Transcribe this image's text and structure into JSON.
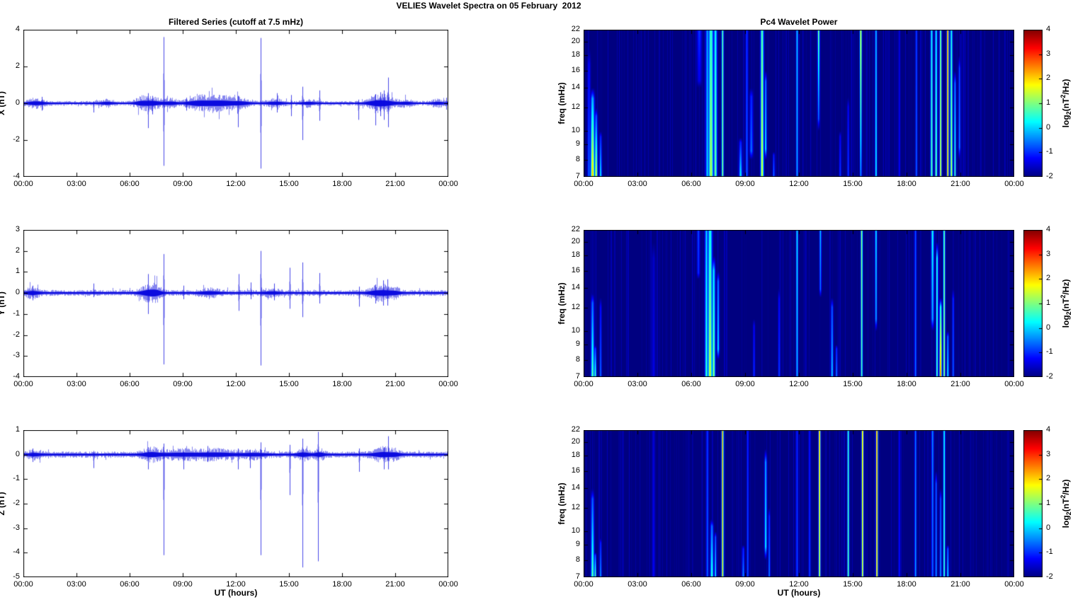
{
  "figure_title": "VELIES Wavelet Spectra on 05 February  2012",
  "left_column_title": "Filtered Series (cutoff at 7.5 mHz)",
  "right_column_title": "Pc4 Wavelet Power",
  "shared": {
    "xlabel": "UT (hours)",
    "time_ticks": [
      "00:00",
      "03:00",
      "06:00",
      "09:00",
      "12:00",
      "15:00",
      "18:00",
      "21:00",
      "00:00"
    ],
    "x_range_hours": [
      0,
      24
    ]
  },
  "colorbar": {
    "min": -2,
    "max": 4,
    "ticks": [
      4,
      3,
      2,
      1,
      0,
      -1,
      -2
    ],
    "label_pre": "log",
    "label_sub": "2",
    "label_mid": "(nT",
    "label_sup": "2",
    "label_post": "/Hz)"
  },
  "colors": {
    "line_series": "#0b0bdf",
    "spectrogram_background": "#000080",
    "axis": "#000000",
    "figure_background": "#ffffff"
  },
  "chart_data": [
    {
      "id": "ts-x",
      "type": "line",
      "seed": 11,
      "title": "Filtered Series (cutoff at 7.5 mHz)",
      "ylabel": "X (nT)",
      "ylim": [
        -4,
        4
      ],
      "yticks": [
        4,
        2,
        0,
        -2,
        -4
      ],
      "noise_base": 0.09,
      "noise_bursts": [
        [
          0.7,
          0.5,
          0.16
        ],
        [
          4.7,
          0.4,
          0.1
        ],
        [
          6.6,
          0.35,
          0.13
        ],
        [
          7.2,
          0.6,
          0.22
        ],
        [
          8.3,
          0.4,
          0.13
        ],
        [
          9.7,
          0.6,
          0.16
        ],
        [
          10.5,
          0.8,
          0.2
        ],
        [
          11.4,
          0.7,
          0.18
        ],
        [
          12.3,
          0.5,
          0.13
        ],
        [
          14.2,
          0.5,
          0.12
        ],
        [
          16.1,
          0.4,
          0.1
        ],
        [
          19.8,
          0.5,
          0.16
        ],
        [
          20.4,
          0.6,
          0.24
        ],
        [
          21.6,
          0.4,
          0.1
        ],
        [
          23.4,
          0.4,
          0.1
        ]
      ],
      "spikes": [
        [
          1.05,
          0.35,
          -0.4
        ],
        [
          3.95,
          0.1,
          -0.5
        ],
        [
          7.05,
          0.55,
          -1.35
        ],
        [
          7.3,
          0.4,
          -0.6
        ],
        [
          7.9,
          3.6,
          -3.4
        ],
        [
          9.2,
          0.3,
          -0.4
        ],
        [
          12.1,
          0.4,
          -1.3
        ],
        [
          13.4,
          3.55,
          -3.55
        ],
        [
          14.3,
          0.55,
          -0.5
        ],
        [
          15.1,
          0.45,
          -0.7
        ],
        [
          15.75,
          0.9,
          -2.0
        ],
        [
          16.7,
          0.7,
          -0.95
        ],
        [
          18.9,
          0.2,
          -0.9
        ],
        [
          19.9,
          0.5,
          -1.2
        ],
        [
          20.15,
          0.6,
          -0.7
        ],
        [
          20.35,
          0.7,
          -0.9
        ],
        [
          20.6,
          1.4,
          -1.3
        ],
        [
          23.9,
          0.3,
          -0.35
        ]
      ]
    },
    {
      "id": "wav-x",
      "type": "heatmap",
      "seed": 21,
      "title": "Pc4 Wavelet Power",
      "ylabel": "freq (mHz)",
      "flim": [
        7,
        22
      ],
      "yticks": [
        22,
        20,
        18,
        16,
        14,
        12,
        10,
        9,
        8,
        7
      ],
      "clim": [
        -2,
        4
      ],
      "features": [
        [
          0.3,
          8,
          7,
          19,
          -0.6,
          -1.3
        ],
        [
          0.5,
          10,
          7,
          14,
          2.2,
          -0.5
        ],
        [
          0.7,
          7,
          7,
          12,
          1.8,
          -1.0
        ],
        [
          0.95,
          6,
          7,
          10,
          0.3,
          -1.2
        ],
        [
          6.45,
          12,
          14,
          22,
          -1.4,
          -0.9
        ],
        [
          6.9,
          9,
          7,
          22,
          0.0,
          -0.3
        ],
        [
          7.1,
          12,
          7,
          22,
          1.4,
          0.6
        ],
        [
          7.35,
          8,
          7,
          22,
          1.0,
          0.3
        ],
        [
          7.75,
          4,
          7,
          22,
          1.2,
          0.9
        ],
        [
          8.75,
          8,
          7,
          9.5,
          0.3,
          -1.2
        ],
        [
          9.1,
          6,
          7,
          22,
          -0.6,
          -0.9
        ],
        [
          9.35,
          9,
          8,
          14,
          -0.5,
          -1.1
        ],
        [
          9.95,
          8,
          7,
          22,
          1.7,
          0.8
        ],
        [
          10.15,
          5,
          8,
          16,
          0.5,
          -0.5
        ],
        [
          10.6,
          4,
          7,
          8.5,
          -0.4,
          -1.2
        ],
        [
          11.9,
          4,
          7,
          22,
          -0.1,
          0.1
        ],
        [
          13.1,
          3.5,
          10,
          22,
          -0.8,
          1.2
        ],
        [
          14.3,
          4,
          7,
          10,
          -0.8,
          -1.3
        ],
        [
          14.75,
          4,
          7,
          13,
          -0.8,
          -1.3
        ],
        [
          15.45,
          3.5,
          7,
          22,
          -0.3,
          2.0
        ],
        [
          16.3,
          4,
          7,
          22,
          0.4,
          0.0
        ],
        [
          17.6,
          4,
          7,
          22,
          -1.2,
          -1.4
        ],
        [
          18.55,
          4,
          7,
          22,
          -0.6,
          -0.8
        ],
        [
          19.4,
          6,
          7,
          22,
          0.9,
          0.3
        ],
        [
          19.65,
          6,
          7,
          22,
          1.0,
          0.2
        ],
        [
          19.9,
          5,
          7,
          22,
          1.8,
          1.2
        ],
        [
          20.3,
          4,
          7,
          22,
          2.6,
          3.0
        ],
        [
          20.5,
          6,
          7,
          22,
          1.6,
          0.4
        ],
        [
          20.7,
          4,
          7,
          16,
          0.8,
          -0.5
        ],
        [
          20.95,
          4,
          8,
          18,
          -0.3,
          -0.8
        ]
      ]
    },
    {
      "id": "ts-y",
      "type": "line",
      "seed": 12,
      "ylabel": "Y (nT)",
      "ylim": [
        -4,
        3
      ],
      "yticks": [
        3,
        2,
        1,
        0,
        -1,
        -2,
        -3,
        -4
      ],
      "noise_base": 0.1,
      "noise_bursts": [
        [
          0.5,
          0.4,
          0.13
        ],
        [
          7.1,
          0.5,
          0.24
        ],
        [
          7.5,
          0.3,
          0.13
        ],
        [
          10.5,
          0.6,
          0.1
        ],
        [
          14.0,
          0.5,
          0.08
        ],
        [
          19.8,
          0.4,
          0.12
        ],
        [
          20.4,
          0.5,
          0.2
        ],
        [
          21.0,
          0.3,
          0.1
        ]
      ],
      "spikes": [
        [
          0.5,
          0.35,
          -0.35
        ],
        [
          3.95,
          0.45,
          -0.2
        ],
        [
          7.05,
          0.9,
          -1.0
        ],
        [
          7.9,
          1.85,
          -3.4
        ],
        [
          9.05,
          0.35,
          -0.3
        ],
        [
          12.15,
          0.9,
          -0.85
        ],
        [
          12.85,
          0.5,
          -0.3
        ],
        [
          13.4,
          2.0,
          -3.45
        ],
        [
          14.15,
          0.45,
          -0.35
        ],
        [
          15.05,
          1.2,
          -0.75
        ],
        [
          15.75,
          1.45,
          -1.15
        ],
        [
          16.7,
          0.95,
          -0.5
        ],
        [
          18.95,
          0.3,
          -0.65
        ],
        [
          19.9,
          0.4,
          -0.5
        ],
        [
          20.3,
          0.6,
          -0.6
        ],
        [
          20.55,
          0.65,
          -0.6
        ]
      ]
    },
    {
      "id": "wav-y",
      "type": "heatmap",
      "seed": 22,
      "ylabel": "freq (mHz)",
      "flim": [
        7,
        22
      ],
      "yticks": [
        22,
        20,
        18,
        16,
        14,
        12,
        10,
        9,
        8,
        7
      ],
      "clim": [
        -2,
        4
      ],
      "features": [
        [
          0.5,
          8,
          7,
          13.5,
          0.9,
          -0.8
        ],
        [
          0.65,
          6,
          7,
          9,
          0.8,
          -1.0
        ],
        [
          0.95,
          5,
          7,
          13,
          -0.5,
          -1.2
        ],
        [
          3.9,
          10,
          7,
          20,
          -1.4,
          -1.6
        ],
        [
          6.4,
          7,
          15,
          22,
          -1.0,
          -0.8
        ],
        [
          6.85,
          8,
          7,
          22,
          0.6,
          0.0
        ],
        [
          7.05,
          11,
          7,
          22,
          1.6,
          0.4
        ],
        [
          7.25,
          8,
          7,
          18,
          1.2,
          0.0
        ],
        [
          7.5,
          6,
          8,
          16,
          0.3,
          -0.6
        ],
        [
          9.5,
          5,
          7,
          11,
          -0.9,
          -1.3
        ],
        [
          10.9,
          4,
          7,
          14,
          -0.8,
          -1.2
        ],
        [
          11.9,
          4,
          7,
          22,
          0.0,
          0.3
        ],
        [
          13.2,
          3.5,
          13,
          22,
          -0.6,
          0.0
        ],
        [
          13.85,
          6,
          7,
          13,
          0.1,
          -0.8
        ],
        [
          14.1,
          4,
          7,
          9,
          -0.4,
          -1.0
        ],
        [
          15.5,
          3.5,
          7,
          22,
          0.8,
          1.3
        ],
        [
          16.3,
          4,
          10,
          22,
          -0.2,
          0.3
        ],
        [
          18.5,
          4,
          7,
          22,
          -0.5,
          -0.7
        ],
        [
          19.45,
          7,
          10,
          22,
          -0.3,
          0.4
        ],
        [
          19.7,
          5,
          7,
          20,
          0.9,
          0.6
        ],
        [
          19.9,
          6,
          7,
          13,
          2.9,
          0.3
        ],
        [
          20.1,
          4,
          7,
          22,
          1.4,
          1.0
        ],
        [
          20.3,
          4,
          7,
          10,
          0.4,
          -0.6
        ],
        [
          20.6,
          4,
          7,
          14,
          -0.6,
          -1.0
        ]
      ]
    },
    {
      "id": "ts-z",
      "type": "line",
      "seed": 13,
      "ylabel": "Z (nT)",
      "ylim": [
        -5,
        1
      ],
      "yticks": [
        1,
        0,
        -1,
        -2,
        -3,
        -4,
        -5
      ],
      "noise_base": 0.09,
      "noise_bursts": [
        [
          0.6,
          0.4,
          0.08
        ],
        [
          7.2,
          0.5,
          0.13
        ],
        [
          9.0,
          1.5,
          0.1
        ],
        [
          11.0,
          1.0,
          0.1
        ],
        [
          13.0,
          0.8,
          0.08
        ],
        [
          15.8,
          0.4,
          0.12
        ],
        [
          16.7,
          0.3,
          0.12
        ],
        [
          20.3,
          0.6,
          0.16
        ],
        [
          21.0,
          0.3,
          0.08
        ]
      ],
      "spikes": [
        [
          0.5,
          0.25,
          -0.3
        ],
        [
          3.95,
          0.15,
          -0.55
        ],
        [
          7.05,
          0.3,
          -0.6
        ],
        [
          7.9,
          0.45,
          -4.1
        ],
        [
          9.05,
          0.2,
          -0.6
        ],
        [
          10.4,
          0.35,
          -0.3
        ],
        [
          12.1,
          0.25,
          -0.6
        ],
        [
          12.8,
          0.2,
          -0.55
        ],
        [
          13.4,
          0.5,
          -4.1
        ],
        [
          15.05,
          0.4,
          -1.65
        ],
        [
          15.75,
          0.65,
          -4.6
        ],
        [
          16.65,
          0.93,
          -4.35
        ],
        [
          18.95,
          0.25,
          -0.7
        ],
        [
          20.35,
          0.3,
          -0.6
        ],
        [
          20.6,
          0.75,
          -0.6
        ]
      ]
    },
    {
      "id": "wav-z",
      "type": "heatmap",
      "seed": 23,
      "ylabel": "freq (mHz)",
      "flim": [
        7,
        22
      ],
      "yticks": [
        22,
        20,
        18,
        16,
        14,
        12,
        10,
        9,
        8,
        7
      ],
      "clim": [
        -2,
        4
      ],
      "features": [
        [
          0.5,
          8,
          7,
          14,
          0.9,
          -0.9
        ],
        [
          0.65,
          5,
          7,
          8.5,
          1.0,
          -0.8
        ],
        [
          0.95,
          5,
          7,
          9.5,
          -0.2,
          -1.1
        ],
        [
          3.9,
          8,
          7,
          22,
          -1.3,
          -1.5
        ],
        [
          6.9,
          6,
          7,
          22,
          -0.6,
          -0.9
        ],
        [
          7.15,
          8,
          7,
          11,
          0.6,
          -0.7
        ],
        [
          7.35,
          5,
          7,
          10,
          0.3,
          -0.8
        ],
        [
          7.75,
          3.5,
          7,
          22,
          2.2,
          2.6
        ],
        [
          8.9,
          6,
          7,
          9,
          -0.3,
          -1.1
        ],
        [
          9.15,
          5,
          7,
          22,
          -0.7,
          -1.0
        ],
        [
          10.15,
          6,
          8,
          19,
          0.4,
          -0.3
        ],
        [
          10.35,
          4,
          7,
          12,
          -0.4,
          -1.0
        ],
        [
          11.9,
          4,
          7,
          22,
          -0.7,
          -1.0
        ],
        [
          12.6,
          4,
          7,
          22,
          -0.8,
          -1.1
        ],
        [
          13.15,
          3.5,
          7,
          22,
          1.6,
          2.4
        ],
        [
          14.75,
          3.5,
          7,
          22,
          0.9,
          0.6
        ],
        [
          15.55,
          3.5,
          7,
          22,
          1.8,
          2.2
        ],
        [
          16.35,
          3.5,
          7,
          22,
          2.4,
          2.8
        ],
        [
          17.6,
          4,
          7,
          22,
          -1.1,
          -1.3
        ],
        [
          18.5,
          4,
          7,
          22,
          -0.2,
          -0.5
        ],
        [
          19.45,
          6,
          7,
          22,
          -0.6,
          -0.4
        ],
        [
          19.65,
          5,
          7,
          16,
          -0.3,
          -0.7
        ],
        [
          19.9,
          5,
          7,
          14,
          -0.2,
          -0.8
        ],
        [
          20.1,
          3.5,
          7,
          22,
          0.8,
          0.4
        ],
        [
          20.3,
          4,
          7,
          9,
          0.3,
          -0.7
        ]
      ]
    }
  ]
}
